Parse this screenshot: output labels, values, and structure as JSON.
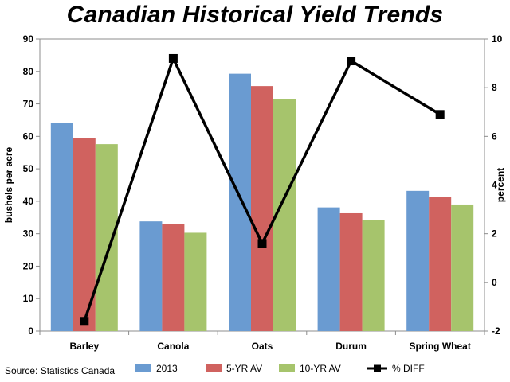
{
  "chart_data": {
    "type": "bar",
    "title": "Canadian Historical Yield Trends",
    "categories": [
      "Barley",
      "Canola",
      "Oats",
      "Durum",
      "Spring Wheat"
    ],
    "ylabel": "bushels per acre",
    "y2label": "percent",
    "ylim": [
      0,
      90
    ],
    "y_ticks": [
      0,
      10,
      20,
      30,
      40,
      50,
      60,
      70,
      80,
      90
    ],
    "y2lim": [
      -2,
      10
    ],
    "y2_ticks": [
      -2,
      0,
      2,
      4,
      6,
      8,
      10
    ],
    "grid": false,
    "legend_position": "bottom",
    "series": [
      {
        "name": "2013",
        "kind": "bar",
        "axis": "left",
        "color": "#6a9bd1",
        "values": [
          64.1,
          33.8,
          79.3,
          38.1,
          43.2
        ]
      },
      {
        "name": "5-YR AV",
        "kind": "bar",
        "axis": "left",
        "color": "#d0625f",
        "values": [
          59.5,
          33.1,
          75.5,
          36.3,
          41.4
        ]
      },
      {
        "name": "10-YR AV",
        "kind": "bar",
        "axis": "left",
        "color": "#a6c46c",
        "values": [
          57.6,
          30.3,
          71.5,
          34.2,
          39.0
        ]
      },
      {
        "name": "% DIFF",
        "kind": "line",
        "axis": "right",
        "color": "#000000",
        "marker": "square",
        "values": [
          -1.6,
          9.2,
          1.6,
          9.1,
          6.9
        ]
      }
    ]
  },
  "source": "Source: Statistics Canada"
}
